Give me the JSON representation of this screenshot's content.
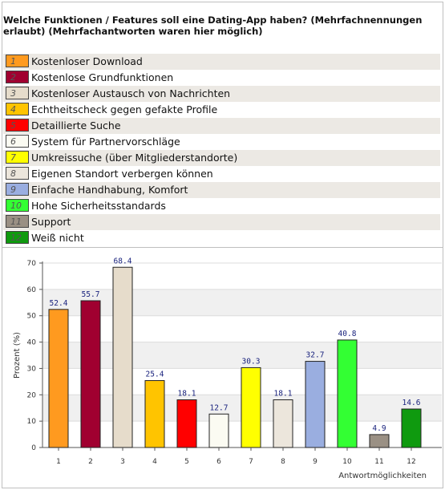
{
  "title": "Welche Funktionen / Features soll eine Dating-App haben? (Mehrfachnennungen erlaubt) (Mehrfachantworten waren hier möglich)",
  "legend": [
    {
      "num": "1",
      "label": "Kostenloser Download",
      "color": "#ff9a1f"
    },
    {
      "num": "2",
      "label": "Kostenlose Grundfunktionen",
      "color": "#a00030"
    },
    {
      "num": "3",
      "label": "Kostenloser Austausch von Nachrichten",
      "color": "#e6dccb"
    },
    {
      "num": "4",
      "label": "Echtheitscheck gegen gefakte Profile",
      "color": "#ffc400"
    },
    {
      "num": "5",
      "label": "Detaillierte Suche",
      "color": "#ff0000"
    },
    {
      "num": "6",
      "label": "System für Partnervorschläge",
      "color": "#fbfbf2"
    },
    {
      "num": "7",
      "label": "Umkreissuche (über Mitgliederstandorte)",
      "color": "#ffff00"
    },
    {
      "num": "8",
      "label": "Eigenen Standort verbergen können",
      "color": "#ece6dc"
    },
    {
      "num": "9",
      "label": "Einfache Handhabung, Komfort",
      "color": "#9aaee0"
    },
    {
      "num": "10",
      "label": "Hohe Sicherheitsstandards",
      "color": "#33ff33"
    },
    {
      "num": "11",
      "label": "Support",
      "color": "#9a9084"
    },
    {
      "num": "12",
      "label": "Weiß nicht",
      "color": "#0f9a0f"
    }
  ],
  "chart_data": {
    "type": "bar",
    "categories": [
      "1",
      "2",
      "3",
      "4",
      "5",
      "6",
      "7",
      "8",
      "9",
      "10",
      "11",
      "12"
    ],
    "values": [
      52.4,
      55.7,
      68.4,
      25.4,
      18.1,
      12.7,
      30.3,
      18.1,
      32.7,
      40.8,
      4.9,
      14.6
    ],
    "value_labels": [
      "52.4",
      "55.7",
      "68.4",
      "25.4",
      "18.1",
      "12.7",
      "30.3",
      "18.1",
      "32.7",
      "40.8",
      "4.9",
      "14.6"
    ],
    "ylabel": "Prozent (%)",
    "xlabel": "Antwortmöglichkeiten",
    "ylim": [
      0,
      70
    ],
    "yticks": [
      "0",
      "10",
      "20",
      "30",
      "40",
      "50",
      "60",
      "70"
    ],
    "grid": true
  }
}
